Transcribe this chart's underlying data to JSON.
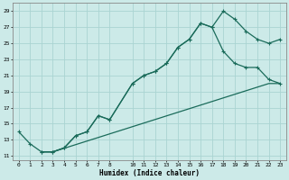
{
  "xlabel": "Humidex (Indice chaleur)",
  "background_color": "#cceae8",
  "grid_color": "#aad4d2",
  "line_color": "#1a6b5a",
  "xlim": [
    -0.5,
    23.5
  ],
  "ylim": [
    10.5,
    30.0
  ],
  "xticks": [
    0,
    1,
    2,
    3,
    4,
    5,
    6,
    7,
    8,
    10,
    11,
    12,
    13,
    14,
    15,
    16,
    17,
    18,
    19,
    20,
    21,
    22,
    23
  ],
  "yticks": [
    11,
    13,
    15,
    17,
    19,
    21,
    23,
    25,
    27,
    29
  ],
  "line1_x": [
    0,
    1,
    2,
    3,
    4,
    5,
    6,
    7,
    8,
    10,
    11,
    12,
    13,
    14,
    15,
    16,
    17,
    18,
    19,
    20,
    21,
    22,
    23
  ],
  "line1_y": [
    14.0,
    12.5,
    11.5,
    11.5,
    12.0,
    13.5,
    14.0,
    16.0,
    15.5,
    20.0,
    21.0,
    21.5,
    22.5,
    24.5,
    25.5,
    27.5,
    27.0,
    29.0,
    28.0,
    26.5,
    25.5,
    25.0,
    25.5
  ],
  "line2_x": [
    2,
    3,
    4,
    5,
    6,
    7,
    8,
    10,
    11,
    12,
    13,
    14,
    15,
    16,
    17,
    18,
    19,
    20,
    21,
    22,
    23
  ],
  "line2_y": [
    11.5,
    11.5,
    12.0,
    13.5,
    14.0,
    16.0,
    15.5,
    20.0,
    21.0,
    21.5,
    22.5,
    24.5,
    25.5,
    27.5,
    27.0,
    24.0,
    22.5,
    22.0,
    22.0,
    20.5,
    20.0
  ],
  "line3_x": [
    2,
    3,
    22,
    23
  ],
  "line3_y": [
    11.5,
    11.5,
    20.0,
    20.0
  ]
}
